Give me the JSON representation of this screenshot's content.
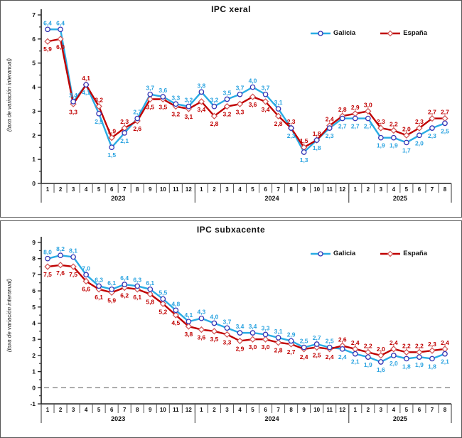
{
  "colors": {
    "galicia_line": "#29ace4",
    "galicia_marker_stroke": "#3333b4",
    "galicia_label": "#2aa3e0",
    "espana_line": "#c00000",
    "espana_marker_stroke": "#d05050",
    "espana_label": "#c00000",
    "axis": "#222222",
    "zero_dash": "#909090"
  },
  "chart_data": [
    {
      "type": "line",
      "title": "IPC xeral",
      "ylabel": "(taxa de variación interanual)",
      "ylim": [
        0,
        7
      ],
      "yticks": [
        7,
        6,
        5,
        4,
        3,
        2,
        1,
        0
      ],
      "grid": false,
      "zero_dashed": false,
      "legend_position": "top-right",
      "year_groups": [
        {
          "label": "2023",
          "months": [
            "1",
            "2",
            "3",
            "4",
            "5",
            "6",
            "7",
            "8",
            "9",
            "10",
            "11",
            "12"
          ]
        },
        {
          "label": "2024",
          "months": [
            "1",
            "2",
            "3",
            "4",
            "5",
            "6",
            "7",
            "8",
            "9",
            "10",
            "11",
            "12"
          ]
        },
        {
          "label": "2025",
          "months": [
            "1",
            "2",
            "3",
            "4",
            "5",
            "6",
            "7",
            "8"
          ]
        }
      ],
      "series": [
        {
          "name": "Galicia",
          "marker": "circle",
          "values": [
            6.4,
            6.4,
            3.4,
            4.1,
            2.9,
            1.5,
            2.1,
            2.7,
            3.7,
            3.6,
            3.3,
            3.2,
            3.8,
            3.2,
            3.5,
            3.7,
            4.0,
            3.7,
            3.1,
            2.3,
            1.3,
            1.8,
            2.3,
            2.7,
            2.7,
            2.7,
            1.9,
            1.9,
            1.7,
            2.0,
            2.3,
            2.5
          ]
        },
        {
          "name": "España",
          "marker": "diamond",
          "values": [
            5.9,
            6.0,
            3.3,
            4.1,
            3.2,
            1.9,
            2.3,
            2.6,
            3.5,
            3.5,
            3.2,
            3.1,
            3.4,
            2.8,
            3.2,
            3.3,
            3.6,
            3.4,
            2.8,
            2.3,
            1.5,
            1.8,
            2.4,
            2.8,
            2.9,
            3.0,
            2.3,
            2.2,
            2.0,
            2.3,
            2.7,
            2.7
          ]
        }
      ]
    },
    {
      "type": "line",
      "title": "IPC subxacente",
      "ylabel": "(taxa de variación interanual)",
      "ylim": [
        -1,
        9
      ],
      "yticks": [
        9,
        8,
        7,
        6,
        5,
        4,
        3,
        2,
        1,
        0,
        -1
      ],
      "grid": false,
      "zero_dashed": true,
      "legend_position": "top-right",
      "year_groups": [
        {
          "label": "2023",
          "months": [
            "1",
            "2",
            "3",
            "4",
            "5",
            "6",
            "7",
            "8",
            "9",
            "10",
            "11",
            "12"
          ]
        },
        {
          "label": "2024",
          "months": [
            "1",
            "2",
            "3",
            "4",
            "5",
            "6",
            "7",
            "8",
            "9",
            "10",
            "11",
            "12"
          ]
        },
        {
          "label": "2025",
          "months": [
            "1",
            "2",
            "3",
            "4",
            "5",
            "6",
            "7",
            "8"
          ]
        }
      ],
      "series": [
        {
          "name": "Galicia",
          "marker": "circle",
          "values": [
            8.0,
            8.2,
            8.1,
            7.0,
            6.3,
            6.1,
            6.4,
            6.3,
            6.1,
            5.5,
            4.8,
            4.1,
            4.3,
            4.0,
            3.7,
            3.4,
            3.4,
            3.3,
            3.1,
            2.9,
            2.5,
            2.7,
            2.5,
            2.4,
            2.1,
            1.9,
            1.6,
            2.0,
            1.8,
            1.9,
            1.8,
            2.1
          ]
        },
        {
          "name": "España",
          "marker": "diamond",
          "values": [
            7.5,
            7.6,
            7.5,
            6.6,
            6.1,
            5.9,
            6.2,
            6.1,
            5.8,
            5.2,
            4.5,
            3.8,
            3.6,
            3.5,
            3.3,
            2.9,
            3.0,
            3.0,
            2.8,
            2.7,
            2.4,
            2.5,
            2.4,
            2.6,
            2.4,
            2.2,
            2.0,
            2.4,
            2.2,
            2.2,
            2.3,
            2.4
          ]
        }
      ]
    }
  ]
}
